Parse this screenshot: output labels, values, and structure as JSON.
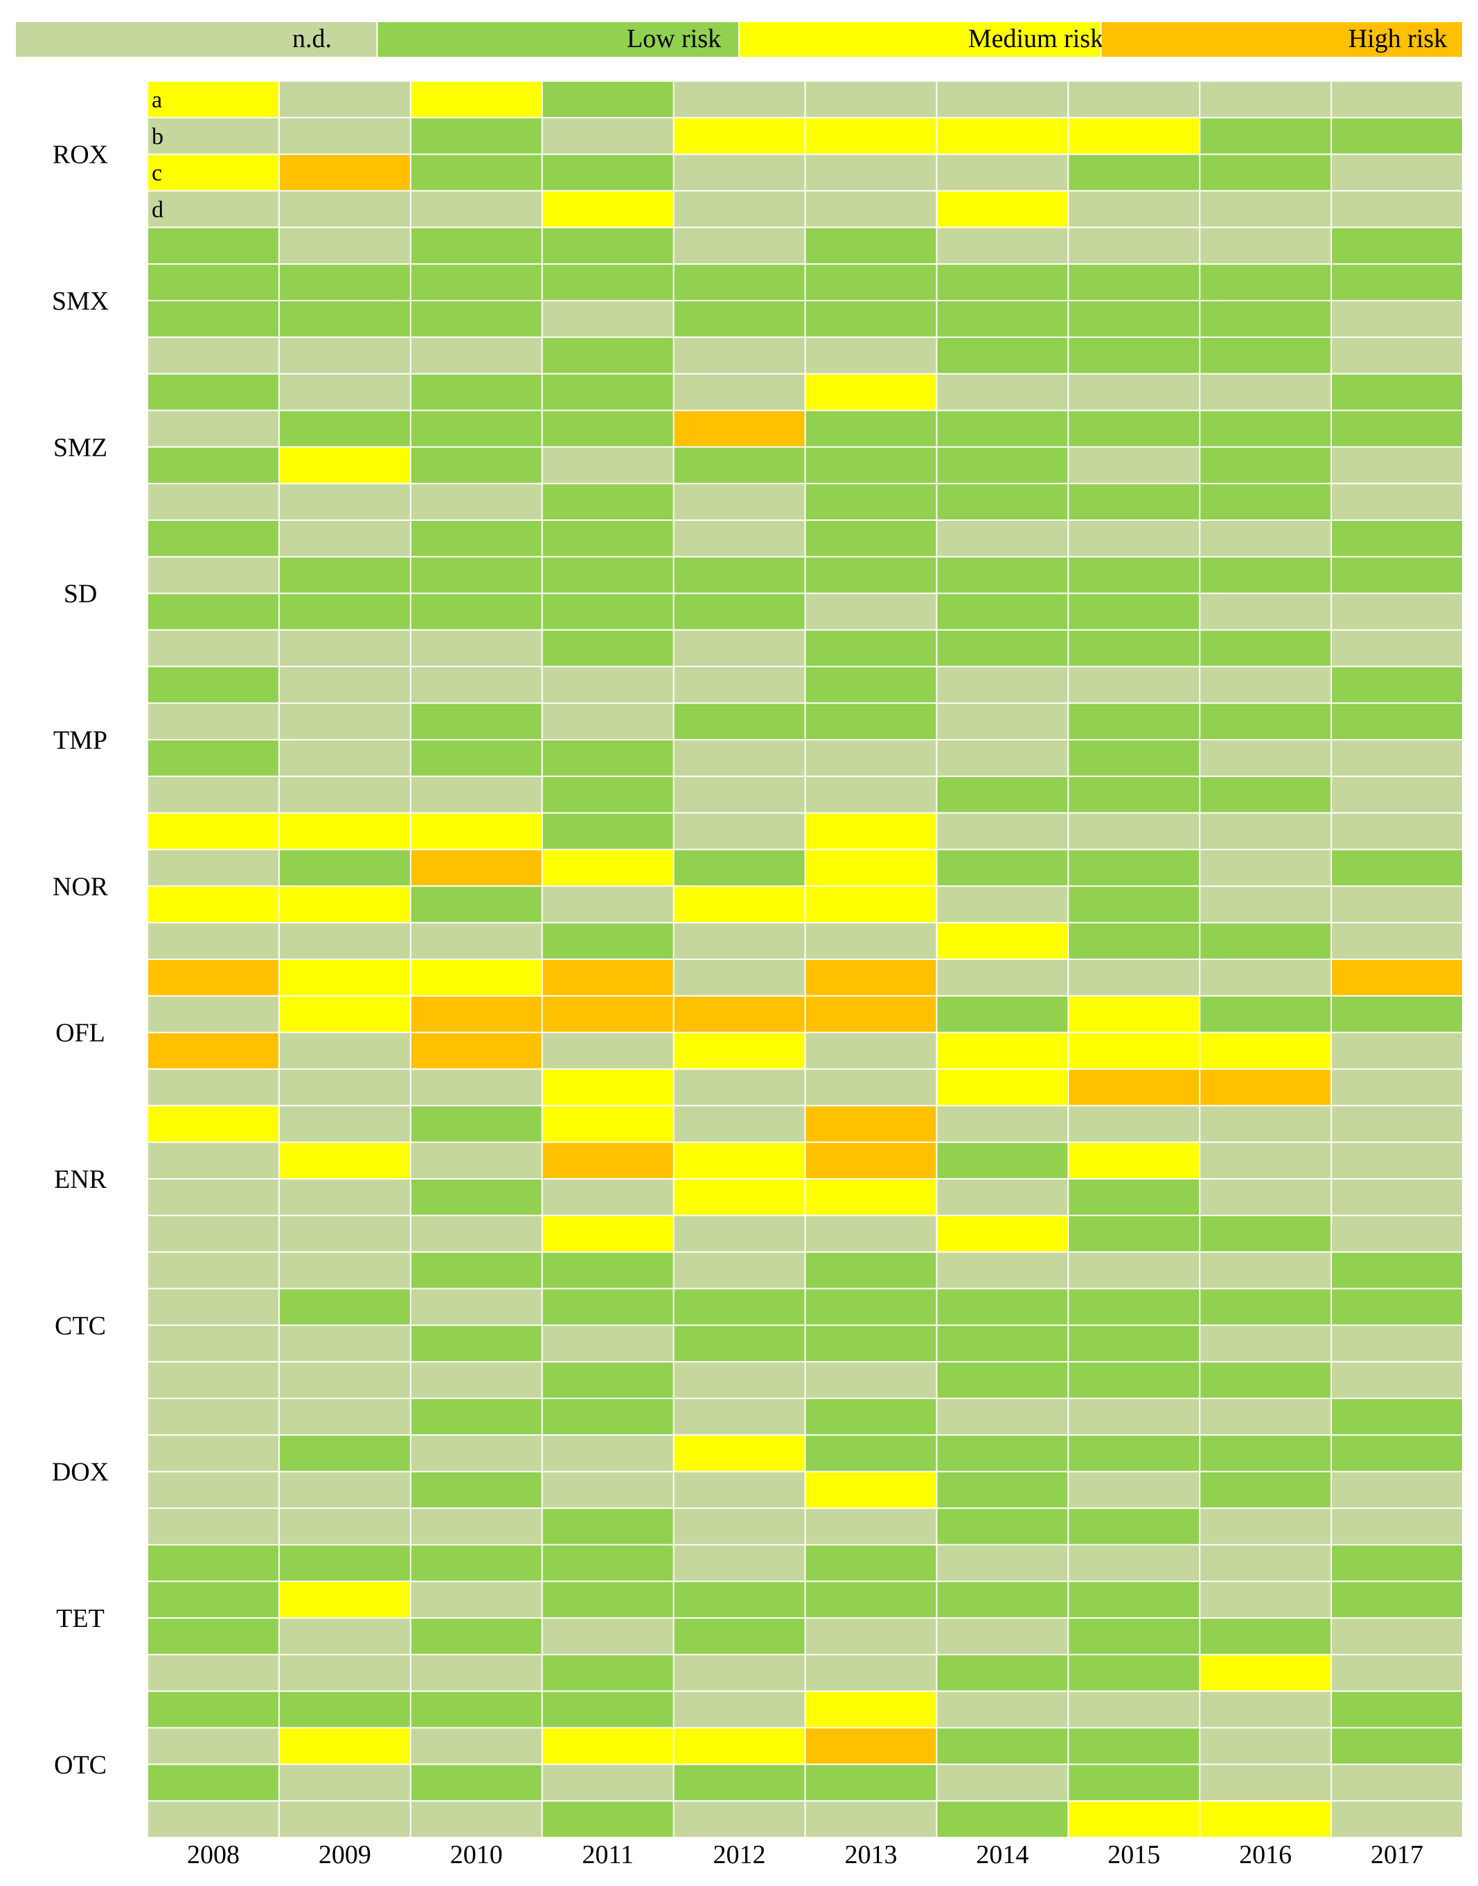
{
  "chart_data": {
    "type": "heatmap",
    "title": "",
    "xlabel": "",
    "ylabel": "",
    "legend_position": "top",
    "legend": [
      {
        "key": "nd",
        "label": "n.d.",
        "color": "#c6d79e"
      },
      {
        "key": "low",
        "label": "Low risk",
        "color": "#92d050"
      },
      {
        "key": "med",
        "label": "Medium risk",
        "color": "#ffff00"
      },
      {
        "key": "high",
        "label": "High risk",
        "color": "#ffc000"
      }
    ],
    "years": [
      "2008",
      "2009",
      "2010",
      "2011",
      "2012",
      "2013",
      "2014",
      "2015",
      "2016",
      "2017"
    ],
    "sub_labels": [
      "a",
      "b",
      "c",
      "d"
    ],
    "code_map": {
      "0": "nd",
      "1": "low",
      "2": "med",
      "3": "high"
    },
    "groups": [
      {
        "name": "ROX",
        "rows": [
          [
            2,
            0,
            2,
            1,
            0,
            0,
            0,
            0,
            0,
            0
          ],
          [
            0,
            0,
            1,
            0,
            2,
            2,
            2,
            2,
            1,
            1
          ],
          [
            2,
            3,
            1,
            1,
            0,
            0,
            0,
            1,
            1,
            0
          ],
          [
            0,
            0,
            0,
            2,
            0,
            0,
            2,
            0,
            0,
            0
          ]
        ]
      },
      {
        "name": "SMX",
        "rows": [
          [
            1,
            0,
            1,
            1,
            0,
            1,
            0,
            0,
            0,
            1
          ],
          [
            1,
            1,
            1,
            1,
            1,
            1,
            1,
            1,
            1,
            1
          ],
          [
            1,
            1,
            1,
            0,
            1,
            1,
            1,
            1,
            1,
            0
          ],
          [
            0,
            0,
            0,
            1,
            0,
            0,
            1,
            1,
            1,
            0
          ]
        ]
      },
      {
        "name": "SMZ",
        "rows": [
          [
            1,
            0,
            1,
            1,
            0,
            2,
            0,
            0,
            0,
            1
          ],
          [
            0,
            1,
            1,
            1,
            3,
            1,
            1,
            1,
            1,
            1
          ],
          [
            1,
            2,
            1,
            0,
            1,
            1,
            1,
            0,
            1,
            0
          ],
          [
            0,
            0,
            0,
            1,
            0,
            1,
            1,
            1,
            1,
            0
          ]
        ]
      },
      {
        "name": "SD",
        "rows": [
          [
            1,
            0,
            1,
            1,
            0,
            1,
            0,
            0,
            0,
            1
          ],
          [
            0,
            1,
            1,
            1,
            1,
            1,
            1,
            1,
            1,
            1
          ],
          [
            1,
            1,
            1,
            1,
            1,
            0,
            1,
            1,
            0,
            0
          ],
          [
            0,
            0,
            0,
            1,
            0,
            1,
            1,
            1,
            1,
            0
          ]
        ]
      },
      {
        "name": "TMP",
        "rows": [
          [
            1,
            0,
            0,
            0,
            0,
            1,
            0,
            0,
            0,
            1
          ],
          [
            0,
            0,
            1,
            0,
            1,
            1,
            0,
            1,
            1,
            1
          ],
          [
            1,
            0,
            1,
            1,
            0,
            0,
            0,
            1,
            0,
            0
          ],
          [
            0,
            0,
            0,
            1,
            0,
            0,
            1,
            1,
            1,
            0
          ]
        ]
      },
      {
        "name": "NOR",
        "rows": [
          [
            2,
            2,
            2,
            1,
            0,
            2,
            0,
            0,
            0,
            0
          ],
          [
            0,
            1,
            3,
            2,
            1,
            2,
            1,
            1,
            0,
            1
          ],
          [
            2,
            2,
            1,
            0,
            2,
            2,
            0,
            1,
            0,
            0
          ],
          [
            0,
            0,
            0,
            1,
            0,
            0,
            2,
            1,
            1,
            0
          ]
        ]
      },
      {
        "name": "OFL",
        "rows": [
          [
            3,
            2,
            2,
            3,
            0,
            3,
            0,
            0,
            0,
            3
          ],
          [
            0,
            2,
            3,
            3,
            3,
            3,
            1,
            2,
            1,
            1
          ],
          [
            3,
            0,
            3,
            0,
            2,
            0,
            2,
            2,
            2,
            0
          ],
          [
            0,
            0,
            0,
            2,
            0,
            0,
            2,
            3,
            3,
            0
          ]
        ]
      },
      {
        "name": "ENR",
        "rows": [
          [
            2,
            0,
            1,
            2,
            0,
            3,
            0,
            0,
            0,
            0
          ],
          [
            0,
            2,
            0,
            3,
            2,
            3,
            1,
            2,
            0,
            0
          ],
          [
            0,
            0,
            1,
            0,
            2,
            2,
            0,
            1,
            0,
            0
          ],
          [
            0,
            0,
            0,
            2,
            0,
            0,
            2,
            1,
            1,
            0
          ]
        ]
      },
      {
        "name": "CTC",
        "rows": [
          [
            0,
            0,
            1,
            1,
            0,
            1,
            0,
            0,
            0,
            1
          ],
          [
            0,
            1,
            0,
            1,
            1,
            1,
            1,
            1,
            1,
            1
          ],
          [
            0,
            0,
            1,
            0,
            1,
            1,
            1,
            1,
            0,
            0
          ],
          [
            0,
            0,
            0,
            1,
            0,
            0,
            1,
            1,
            1,
            0
          ]
        ]
      },
      {
        "name": "DOX",
        "rows": [
          [
            0,
            0,
            1,
            1,
            0,
            1,
            0,
            0,
            0,
            1
          ],
          [
            0,
            1,
            0,
            0,
            2,
            1,
            1,
            1,
            1,
            1
          ],
          [
            0,
            0,
            1,
            0,
            0,
            2,
            1,
            0,
            1,
            0
          ],
          [
            0,
            0,
            0,
            1,
            0,
            0,
            1,
            1,
            0,
            0
          ]
        ]
      },
      {
        "name": "TET",
        "rows": [
          [
            1,
            1,
            1,
            1,
            0,
            1,
            0,
            0,
            0,
            1
          ],
          [
            1,
            2,
            0,
            1,
            1,
            1,
            1,
            1,
            0,
            1
          ],
          [
            1,
            0,
            1,
            0,
            1,
            0,
            0,
            1,
            1,
            0
          ],
          [
            0,
            0,
            0,
            1,
            0,
            0,
            1,
            1,
            2,
            0
          ]
        ]
      },
      {
        "name": "OTC",
        "rows": [
          [
            1,
            1,
            1,
            1,
            0,
            2,
            0,
            0,
            0,
            1
          ],
          [
            0,
            2,
            0,
            2,
            2,
            3,
            1,
            1,
            0,
            1
          ],
          [
            1,
            0,
            1,
            0,
            1,
            1,
            0,
            1,
            0,
            0
          ],
          [
            0,
            0,
            0,
            1,
            0,
            0,
            1,
            2,
            2,
            0
          ]
        ]
      }
    ]
  }
}
